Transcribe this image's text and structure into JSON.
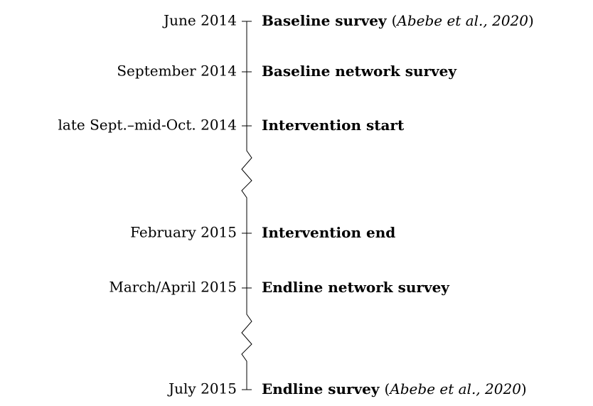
{
  "events": [
    {
      "date": "June 2014",
      "label": "Baseline survey",
      "citation_open": "(",
      "citation": "Abebe et al., 2020",
      "citation_close": ")"
    },
    {
      "date": "September 2014",
      "label": "Baseline network survey"
    },
    {
      "date": "late Sept.–mid-Oct. 2014",
      "label": "Intervention start"
    },
    {
      "date": "February 2015",
      "label": "Intervention end"
    },
    {
      "date": "March/April 2015",
      "label": "Endline network survey"
    },
    {
      "date": "July 2015",
      "label": "Endline survey",
      "citation_open": "(",
      "citation": "Abebe et al., 2020",
      "citation_close": ")"
    }
  ]
}
